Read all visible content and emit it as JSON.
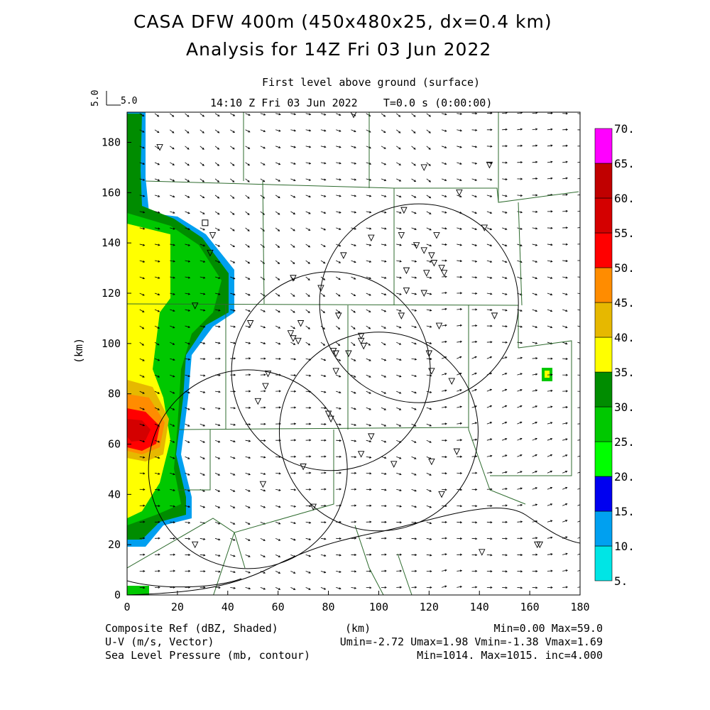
{
  "header": {
    "title_line1": "CASA DFW 400m (450x480x25, dx=0.4 km)",
    "title_line2": "Analysis for 14Z Fri 03 Jun 2022",
    "subtitle_level": "First level above ground (surface)",
    "subtitle_time": "14:10 Z Fri 03 Jun 2022    T=0.0 s (0:00:00)",
    "vector_scale_label": "5.0",
    "vector_scale_label_rot": "5.0"
  },
  "axes": {
    "ylabel": "(km)",
    "xlabel": "(km)",
    "x_ticks": [
      "0",
      "20",
      "40",
      "60",
      "80",
      "100",
      "120",
      "140",
      "160",
      "180"
    ],
    "y_ticks": [
      "0",
      "20",
      "40",
      "60",
      "80",
      "100",
      "120",
      "140",
      "160",
      "180"
    ],
    "x_range": [
      0,
      180
    ],
    "y_range": [
      0,
      192
    ]
  },
  "colorbar": {
    "labels": [
      "5.",
      "10.",
      "15.",
      "20.",
      "25.",
      "30.",
      "35.",
      "40.",
      "45.",
      "50.",
      "55.",
      "60.",
      "65.",
      "70."
    ],
    "colors": [
      "#00e5e5",
      "#00a0f0",
      "#0000f0",
      "#00ff00",
      "#00c800",
      "#008c00",
      "#ffff00",
      "#e6b800",
      "#ff8c00",
      "#ff0000",
      "#d40000",
      "#c00000",
      "#ff00ff"
    ]
  },
  "footer": {
    "left1": "Composite Ref (dBZ, Shaded)",
    "left2": "U-V (m/s, Vector)",
    "left3": "Sea Level Pressure (mb, contour)",
    "center1": "(km)",
    "right1": "Min=0.00 Max=59.0",
    "right2": "Umin=-2.72 Umax=1.98 Vmin=-1.38 Vmax=1.69",
    "right3": "Min=1014. Max=1015. inc=4.000"
  },
  "map": {
    "radar_circles": [
      {
        "cx": 116,
        "cy": 116
      },
      {
        "cx": 81,
        "cy": 89
      },
      {
        "cx": 100,
        "cy": 65
      },
      {
        "cx": 48,
        "cy": 50
      }
    ],
    "radar_radius_km": 39.5,
    "stations": [
      [
        90,
        191
      ],
      [
        13,
        178
      ],
      [
        118,
        170
      ],
      [
        144,
        171
      ],
      [
        132,
        160
      ],
      [
        142,
        146
      ],
      [
        110,
        153
      ],
      [
        34,
        143
      ],
      [
        109,
        143
      ],
      [
        97,
        142
      ],
      [
        123,
        143
      ],
      [
        115,
        139
      ],
      [
        118,
        137
      ],
      [
        121,
        135
      ],
      [
        86,
        135
      ],
      [
        122,
        132
      ],
      [
        125,
        130
      ],
      [
        111,
        129
      ],
      [
        119,
        128
      ],
      [
        126,
        128
      ],
      [
        33,
        136
      ],
      [
        66,
        126
      ],
      [
        77,
        122
      ],
      [
        111,
        121
      ],
      [
        118,
        120
      ],
      [
        27,
        115
      ],
      [
        109,
        111
      ],
      [
        84,
        111
      ],
      [
        146,
        111
      ],
      [
        49,
        108
      ],
      [
        69,
        108
      ],
      [
        124,
        107
      ],
      [
        65,
        104
      ],
      [
        66,
        102
      ],
      [
        68,
        101
      ],
      [
        93,
        103
      ],
      [
        93,
        101
      ],
      [
        94,
        99
      ],
      [
        82,
        97
      ],
      [
        83,
        96
      ],
      [
        88,
        96
      ],
      [
        120,
        96
      ],
      [
        121,
        89
      ],
      [
        83,
        89
      ],
      [
        129,
        85
      ],
      [
        56,
        88
      ],
      [
        55,
        83
      ],
      [
        52,
        77
      ],
      [
        80,
        72
      ],
      [
        81,
        70
      ],
      [
        97,
        63
      ],
      [
        131,
        57
      ],
      [
        93,
        56
      ],
      [
        106,
        52
      ],
      [
        121,
        53
      ],
      [
        70,
        51
      ],
      [
        54,
        44
      ],
      [
        125,
        40
      ],
      [
        74,
        35
      ],
      [
        27,
        20
      ],
      [
        141,
        17
      ],
      [
        163,
        20
      ],
      [
        164,
        20
      ]
    ],
    "square_marker": [
      31,
      148
    ],
    "square_marker2": [
      168,
      88
    ]
  }
}
